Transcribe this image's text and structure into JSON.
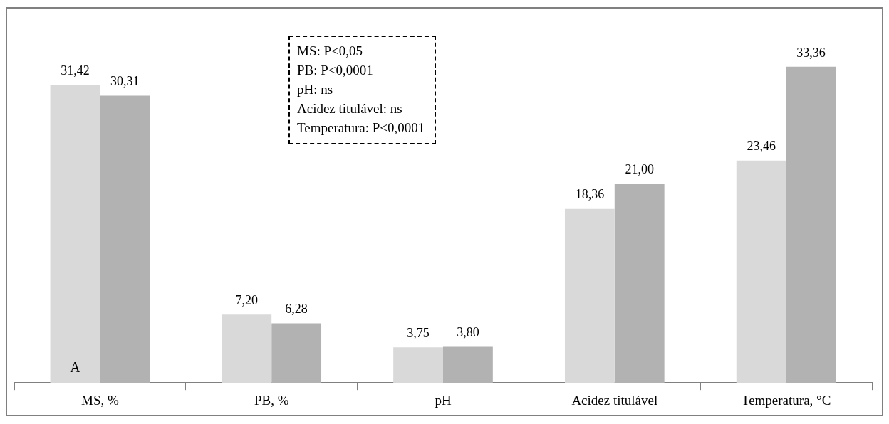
{
  "chart_data": {
    "type": "bar",
    "categories": [
      "MS, %",
      "PB, %",
      "pH",
      "Acidez titulável",
      "Temperatura, °C"
    ],
    "series": [
      {
        "color": "#d9d9d9",
        "values": [
          31.42,
          7.2,
          3.75,
          18.36,
          23.46
        ],
        "value_labels": [
          "31,42",
          "7,20",
          "3,75",
          "18,36",
          "23,46"
        ]
      },
      {
        "color": "#b2b2b2",
        "values": [
          30.31,
          6.28,
          3.8,
          21.0,
          33.36
        ],
        "value_labels": [
          "30,31",
          "6,28",
          "3,80",
          "21,00",
          "33,36"
        ]
      }
    ],
    "annotations": [
      "MS: P<0,05",
      "PB: P<0,0001",
      "pH: ns",
      "Acidez titulável: ns",
      "Temperatura: P<0,0001",
      "A"
    ],
    "grid": false,
    "legend": false
  }
}
